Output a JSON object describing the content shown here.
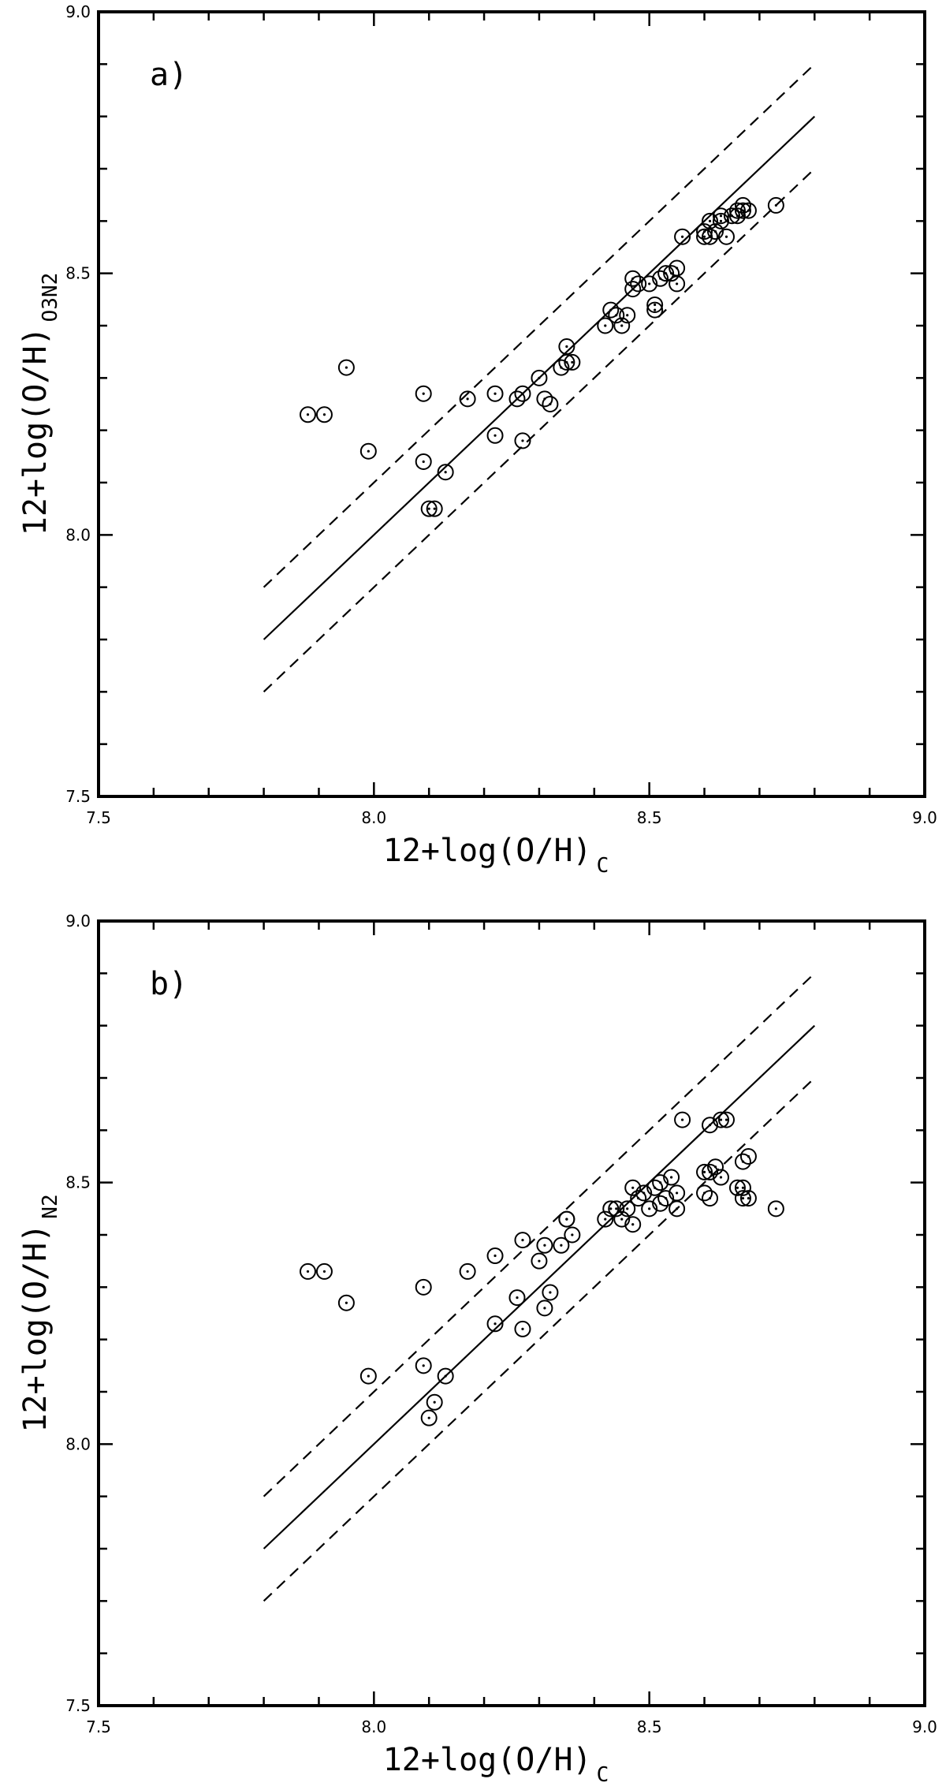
{
  "colors": {
    "ink": "#000000",
    "background": "#ffffff"
  },
  "chart_data": [
    {
      "type": "scatter",
      "panel_label": "a)",
      "xlabel": "12+log(O/H)",
      "xlabel_sub": "C",
      "ylabel": "12+log(O/H)",
      "ylabel_sub": "O3N2",
      "xlim": [
        7.5,
        9.0
      ],
      "ylim": [
        7.5,
        9.0
      ],
      "x_tick_labels": [
        "7.5",
        "8.0",
        "8.5",
        "9.0"
      ],
      "y_tick_labels": [
        "7.5",
        "8.0",
        "8.5",
        "9.0"
      ],
      "lines": [
        {
          "name": "one-to-one",
          "style": "solid",
          "x": [
            7.8,
            8.8
          ],
          "y": [
            7.8,
            8.8
          ]
        },
        {
          "name": "upper-offset",
          "style": "dashed",
          "x": [
            7.8,
            8.8
          ],
          "y": [
            7.9,
            8.9
          ]
        },
        {
          "name": "lower-offset",
          "style": "dashed",
          "x": [
            7.8,
            8.8
          ],
          "y": [
            7.7,
            8.7
          ]
        }
      ],
      "points": [
        [
          7.88,
          8.23
        ],
        [
          7.91,
          8.23
        ],
        [
          7.95,
          8.32
        ],
        [
          7.99,
          8.16
        ],
        [
          8.09,
          8.27
        ],
        [
          8.09,
          8.14
        ],
        [
          8.1,
          8.05
        ],
        [
          8.11,
          8.05
        ],
        [
          8.13,
          8.12
        ],
        [
          8.17,
          8.26
        ],
        [
          8.22,
          8.27
        ],
        [
          8.22,
          8.19
        ],
        [
          8.26,
          8.26
        ],
        [
          8.27,
          8.27
        ],
        [
          8.27,
          8.18
        ],
        [
          8.3,
          8.3
        ],
        [
          8.31,
          8.26
        ],
        [
          8.32,
          8.25
        ],
        [
          8.34,
          8.32
        ],
        [
          8.35,
          8.36
        ],
        [
          8.35,
          8.33
        ],
        [
          8.36,
          8.33
        ],
        [
          8.42,
          8.4
        ],
        [
          8.43,
          8.43
        ],
        [
          8.44,
          8.42
        ],
        [
          8.45,
          8.4
        ],
        [
          8.46,
          8.42
        ],
        [
          8.47,
          8.49
        ],
        [
          8.47,
          8.47
        ],
        [
          8.48,
          8.48
        ],
        [
          8.5,
          8.48
        ],
        [
          8.51,
          8.43
        ],
        [
          8.51,
          8.44
        ],
        [
          8.52,
          8.49
        ],
        [
          8.53,
          8.5
        ],
        [
          8.54,
          8.5
        ],
        [
          8.55,
          8.51
        ],
        [
          8.55,
          8.48
        ],
        [
          8.56,
          8.57
        ],
        [
          8.6,
          8.57
        ],
        [
          8.6,
          8.58
        ],
        [
          8.61,
          8.57
        ],
        [
          8.61,
          8.6
        ],
        [
          8.62,
          8.58
        ],
        [
          8.63,
          8.6
        ],
        [
          8.63,
          8.61
        ],
        [
          8.64,
          8.57
        ],
        [
          8.65,
          8.61
        ],
        [
          8.66,
          8.62
        ],
        [
          8.66,
          8.61
        ],
        [
          8.67,
          8.62
        ],
        [
          8.67,
          8.63
        ],
        [
          8.68,
          8.62
        ],
        [
          8.73,
          8.63
        ]
      ]
    },
    {
      "type": "scatter",
      "panel_label": "b)",
      "xlabel": "12+log(O/H)",
      "xlabel_sub": "C",
      "ylabel": "12+log(O/H)",
      "ylabel_sub": "N2",
      "xlim": [
        7.5,
        9.0
      ],
      "ylim": [
        7.5,
        9.0
      ],
      "x_tick_labels": [
        "7.5",
        "8.0",
        "8.5",
        "9.0"
      ],
      "y_tick_labels": [
        "7.5",
        "8.0",
        "8.5",
        "9.0"
      ],
      "lines": [
        {
          "name": "one-to-one",
          "style": "solid",
          "x": [
            7.8,
            8.8
          ],
          "y": [
            7.8,
            8.8
          ]
        },
        {
          "name": "upper-offset",
          "style": "dashed",
          "x": [
            7.8,
            8.8
          ],
          "y": [
            7.9,
            8.9
          ]
        },
        {
          "name": "lower-offset",
          "style": "dashed",
          "x": [
            7.8,
            8.8
          ],
          "y": [
            7.7,
            8.7
          ]
        }
      ],
      "points": [
        [
          7.88,
          8.33
        ],
        [
          7.91,
          8.33
        ],
        [
          7.95,
          8.27
        ],
        [
          7.99,
          8.13
        ],
        [
          8.09,
          8.3
        ],
        [
          8.09,
          8.15
        ],
        [
          8.1,
          8.05
        ],
        [
          8.11,
          8.08
        ],
        [
          8.13,
          8.13
        ],
        [
          8.17,
          8.33
        ],
        [
          8.22,
          8.36
        ],
        [
          8.22,
          8.23
        ],
        [
          8.26,
          8.28
        ],
        [
          8.27,
          8.39
        ],
        [
          8.27,
          8.22
        ],
        [
          8.3,
          8.35
        ],
        [
          8.31,
          8.26
        ],
        [
          8.31,
          8.38
        ],
        [
          8.32,
          8.29
        ],
        [
          8.34,
          8.38
        ],
        [
          8.35,
          8.43
        ],
        [
          8.35,
          8.43
        ],
        [
          8.36,
          8.4
        ],
        [
          8.42,
          8.43
        ],
        [
          8.43,
          8.45
        ],
        [
          8.44,
          8.45
        ],
        [
          8.45,
          8.43
        ],
        [
          8.46,
          8.45
        ],
        [
          8.47,
          8.49
        ],
        [
          8.47,
          8.42
        ],
        [
          8.48,
          8.47
        ],
        [
          8.49,
          8.48
        ],
        [
          8.5,
          8.45
        ],
        [
          8.51,
          8.49
        ],
        [
          8.52,
          8.5
        ],
        [
          8.52,
          8.46
        ],
        [
          8.53,
          8.47
        ],
        [
          8.54,
          8.51
        ],
        [
          8.55,
          8.48
        ],
        [
          8.55,
          8.45
        ],
        [
          8.56,
          8.62
        ],
        [
          8.6,
          8.52
        ],
        [
          8.6,
          8.48
        ],
        [
          8.61,
          8.61
        ],
        [
          8.61,
          8.47
        ],
        [
          8.61,
          8.52
        ],
        [
          8.62,
          8.53
        ],
        [
          8.63,
          8.51
        ],
        [
          8.63,
          8.62
        ],
        [
          8.64,
          8.62
        ],
        [
          8.66,
          8.49
        ],
        [
          8.67,
          8.49
        ],
        [
          8.67,
          8.54
        ],
        [
          8.67,
          8.47
        ],
        [
          8.68,
          8.55
        ],
        [
          8.68,
          8.47
        ],
        [
          8.73,
          8.45
        ]
      ]
    }
  ]
}
